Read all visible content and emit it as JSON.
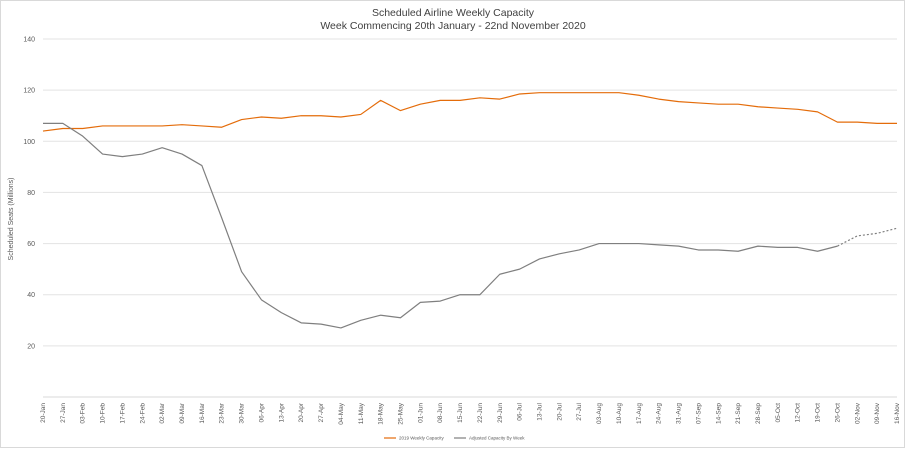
{
  "chart_data": {
    "type": "line",
    "title": "Scheduled Airline Weekly Capacity",
    "subtitle": "Week Commencing 20th January - 22nd November 2020",
    "xlabel": "",
    "ylabel": "Scheduled Seats (Millions)",
    "ylim": [
      0,
      140
    ],
    "yticks": [
      20,
      40,
      60,
      80,
      100,
      120,
      140
    ],
    "grid": true,
    "legend_position": "bottom",
    "categories": [
      "20-Jan",
      "27-Jan",
      "03-Feb",
      "10-Feb",
      "17-Feb",
      "24-Feb",
      "02-Mar",
      "09-Mar",
      "16-Mar",
      "23-Mar",
      "30-Mar",
      "06-Apr",
      "13-Apr",
      "20-Apr",
      "27-Apr",
      "04-May",
      "11-May",
      "18-May",
      "25-May",
      "01-Jun",
      "08-Jun",
      "15-Jun",
      "22-Jun",
      "29-Jun",
      "06-Jul",
      "13-Jul",
      "20-Jul",
      "27-Jul",
      "03-Aug",
      "10-Aug",
      "17-Aug",
      "24-Aug",
      "31-Aug",
      "07-Sep",
      "14-Sep",
      "21-Sep",
      "28-Sep",
      "05-Oct",
      "12-Oct",
      "19-Oct",
      "26-Oct",
      "02-Nov",
      "09-Nov",
      "16-Nov"
    ],
    "series": [
      {
        "name": "2019 Weekly Capacity",
        "color": "#e46c0a",
        "values": [
          104,
          105,
          105,
          106,
          106,
          106,
          106,
          106.5,
          106,
          105.5,
          108.5,
          109.5,
          109,
          110,
          110,
          109.5,
          110.5,
          116,
          112,
          114.5,
          116,
          116,
          117,
          116.5,
          118.5,
          119,
          119,
          119,
          119,
          119,
          118,
          116.5,
          115.5,
          115,
          114.5,
          114.5,
          113.5,
          113,
          112.5,
          111.5,
          107.5,
          107.5,
          107,
          107
        ]
      },
      {
        "name": "Adjusted Capacity By Week",
        "color": "#7f7f7f",
        "values": [
          107,
          107,
          102,
          95,
          94,
          95,
          97.5,
          95,
          90.5,
          70,
          49,
          38,
          33,
          29,
          28.5,
          27,
          30,
          32,
          31,
          37,
          37.5,
          40,
          40,
          48,
          50,
          54,
          56,
          57.5,
          60,
          60,
          60,
          59.5,
          59,
          57.5,
          57.5,
          57,
          59,
          58.5,
          58.5,
          57,
          59,
          63,
          64,
          66
        ],
        "dotted_from_index": 40
      }
    ]
  }
}
